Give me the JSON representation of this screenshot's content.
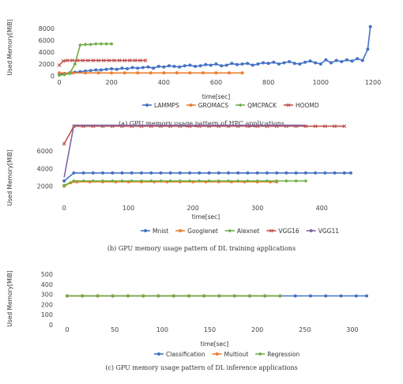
{
  "chart_data": [
    {
      "type": "line",
      "caption": "(a) GPU memory usage pattern of HPC applications",
      "xlabel": "time[sec]",
      "ylabel": "Used Memory[MiB]",
      "xlim": [
        0,
        1200
      ],
      "ylim": [
        0,
        8000
      ],
      "xticks": [
        0,
        200,
        400,
        600,
        800,
        1000,
        1200
      ],
      "yticks": [
        0,
        2000,
        4000,
        6000,
        8000
      ],
      "legend": "bottom",
      "series": [
        {
          "name": "LAMMPS",
          "color": "#4472c4",
          "marker": "circle",
          "x": [
            0,
            20,
            40,
            60,
            80,
            100,
            120,
            140,
            160,
            180,
            200,
            220,
            240,
            260,
            280,
            300,
            320,
            340,
            360,
            380,
            400,
            420,
            440,
            460,
            480,
            500,
            520,
            540,
            560,
            580,
            600,
            620,
            640,
            660,
            680,
            700,
            720,
            740,
            760,
            780,
            800,
            820,
            840,
            860,
            880,
            900,
            920,
            940,
            960,
            980,
            1000,
            1020,
            1040,
            1060,
            1080,
            1100,
            1120,
            1140,
            1160,
            1180,
            1190
          ],
          "y": [
            300,
            400,
            500,
            600,
            700,
            800,
            900,
            1000,
            1000,
            1100,
            1200,
            1100,
            1300,
            1200,
            1400,
            1300,
            1400,
            1500,
            1300,
            1600,
            1500,
            1700,
            1600,
            1500,
            1700,
            1800,
            1600,
            1700,
            1900,
            1800,
            2000,
            1700,
            1800,
            2100,
            1900,
            2000,
            2100,
            1800,
            2000,
            2200,
            2100,
            2300,
            2000,
            2200,
            2400,
            2100,
            2000,
            2300,
            2500,
            2200,
            2000,
            2700,
            2200,
            2600,
            2400,
            2700,
            2500,
            2900,
            2600,
            4500,
            8300
          ]
        },
        {
          "name": "GROMACS",
          "color": "#ed7d31",
          "marker": "circle",
          "x": [
            0,
            50,
            100,
            150,
            200,
            250,
            300,
            350,
            400,
            450,
            500,
            550,
            600,
            650,
            700
          ],
          "y": [
            500,
            500,
            500,
            500,
            500,
            500,
            500,
            500,
            500,
            500,
            500,
            500,
            500,
            500,
            500
          ]
        },
        {
          "name": "QMCPACK",
          "color": "#70ad47",
          "marker": "diamond",
          "x": [
            0,
            20,
            40,
            60,
            80,
            100,
            120,
            140,
            160,
            180,
            200
          ],
          "y": [
            100,
            200,
            400,
            2000,
            5200,
            5300,
            5300,
            5400,
            5400,
            5400,
            5400
          ]
        },
        {
          "name": "HOOMD",
          "color": "#c0504d",
          "marker": "x",
          "x": [
            0,
            15,
            30,
            50,
            70,
            90,
            110,
            130,
            150,
            170,
            190,
            210,
            230,
            250,
            270,
            290,
            310,
            330
          ],
          "y": [
            1800,
            2500,
            2600,
            2600,
            2600,
            2600,
            2600,
            2600,
            2600,
            2600,
            2600,
            2600,
            2600,
            2600,
            2600,
            2600,
            2600,
            2600
          ]
        }
      ]
    },
    {
      "type": "line",
      "caption": "(b) GPU memory usage pattern of DL training applications",
      "xlabel": "time[sec]",
      "ylabel": "Used Memory[MiB]",
      "xlim": [
        -10,
        450
      ],
      "ylim": [
        0,
        6000
      ],
      "xticks": [
        0,
        100,
        200,
        300,
        400
      ],
      "yticks": [
        2000,
        4000,
        6000
      ],
      "legend": "bottom",
      "series": [
        {
          "name": "Mnist",
          "color": "#4472c4",
          "marker": "circle",
          "x": [
            0,
            15,
            30,
            45,
            60,
            75,
            90,
            105,
            120,
            135,
            150,
            165,
            180,
            195,
            210,
            225,
            240,
            255,
            270,
            285,
            300,
            315,
            330,
            345,
            360,
            375,
            390,
            405,
            420,
            435,
            445
          ],
          "y": [
            2600,
            3500,
            3500,
            3500,
            3500,
            3500,
            3500,
            3500,
            3500,
            3500,
            3500,
            3500,
            3500,
            3500,
            3500,
            3500,
            3500,
            3500,
            3500,
            3500,
            3500,
            3500,
            3500,
            3500,
            3500,
            3500,
            3500,
            3500,
            3500,
            3500,
            3500
          ]
        },
        {
          "name": "Googlenet",
          "color": "#ed7d31",
          "marker": "circle",
          "x": [
            0,
            10,
            20,
            40,
            60,
            80,
            100,
            120,
            140,
            160,
            180,
            200,
            220,
            240,
            260,
            280,
            300,
            320,
            330
          ],
          "y": [
            2000,
            2400,
            2500,
            2500,
            2500,
            2500,
            2500,
            2500,
            2500,
            2500,
            2500,
            2500,
            2500,
            2500,
            2500,
            2500,
            2500,
            2500,
            2500
          ]
        },
        {
          "name": "Alexnet",
          "color": "#70ad47",
          "marker": "diamond",
          "x": [
            0,
            15,
            30,
            45,
            60,
            75,
            90,
            105,
            120,
            135,
            150,
            165,
            180,
            195,
            210,
            225,
            240,
            255,
            270,
            285,
            300,
            315,
            330,
            345,
            360,
            375
          ],
          "y": [
            2100,
            2600,
            2600,
            2600,
            2600,
            2600,
            2600,
            2600,
            2600,
            2600,
            2600,
            2600,
            2600,
            2600,
            2600,
            2600,
            2600,
            2600,
            2600,
            2600,
            2600,
            2600,
            2600,
            2600,
            2600,
            2600
          ]
        },
        {
          "name": "VGG16",
          "color": "#c0504d",
          "marker": "x",
          "x": [
            0,
            15,
            30,
            45,
            60,
            75,
            90,
            105,
            120,
            135,
            150,
            165,
            180,
            195,
            210,
            225,
            240,
            255,
            270,
            285,
            300,
            315,
            330,
            345,
            360,
            375,
            390,
            405,
            420,
            435
          ],
          "y": [
            6800,
            8800,
            8800,
            8800,
            8800,
            8800,
            8800,
            8800,
            8800,
            8800,
            8800,
            8800,
            8800,
            8800,
            8800,
            8800,
            8800,
            8800,
            8800,
            8800,
            8800,
            8800,
            8800,
            8800,
            8800,
            8800,
            8800,
            8800,
            8800,
            8800
          ]
        },
        {
          "name": "VGG11",
          "color": "#8064a2",
          "marker": "none",
          "x": [
            0,
            15,
            30,
            60,
            90,
            120,
            150,
            180,
            210,
            240,
            270,
            300,
            330,
            360,
            375
          ],
          "y": [
            3000,
            8900,
            8900,
            8900,
            8900,
            8900,
            8900,
            8900,
            8900,
            8900,
            8900,
            8900,
            8900,
            8900,
            8900
          ]
        }
      ]
    },
    {
      "type": "line",
      "caption": "(c) GPU memory usage pattern of DL inference applications",
      "xlabel": "time[sec]",
      "ylabel": "Used Memory[MiB]",
      "xlim": [
        -10,
        320
      ],
      "ylim": [
        0,
        500
      ],
      "xticks": [
        0,
        50,
        100,
        150,
        200,
        250,
        300
      ],
      "yticks": [
        0,
        100,
        200,
        300,
        400,
        500
      ],
      "legend": "bottom",
      "series": [
        {
          "name": "Classification",
          "color": "#4472c4",
          "marker": "circle",
          "x": [
            0,
            16,
            32,
            48,
            64,
            80,
            96,
            112,
            128,
            144,
            160,
            176,
            192,
            208,
            224,
            240,
            256,
            272,
            288,
            304,
            315
          ],
          "y": [
            285,
            285,
            285,
            285,
            285,
            285,
            285,
            285,
            285,
            285,
            285,
            285,
            285,
            285,
            285,
            285,
            285,
            285,
            285,
            285,
            285
          ]
        },
        {
          "name": "Multiout",
          "color": "#ed7d31",
          "marker": "circle",
          "x": [
            0,
            16,
            32,
            48,
            64,
            80,
            96,
            112,
            128,
            144,
            160,
            176,
            192,
            208,
            224
          ],
          "y": [
            285,
            285,
            285,
            285,
            285,
            285,
            285,
            285,
            285,
            285,
            285,
            285,
            285,
            285,
            285
          ]
        },
        {
          "name": "Regression",
          "color": "#70ad47",
          "marker": "diamond",
          "x": [
            0,
            16,
            32,
            48,
            64,
            80,
            96,
            112,
            128,
            144,
            160,
            176,
            192,
            208,
            224
          ],
          "y": [
            285,
            285,
            285,
            285,
            285,
            285,
            285,
            285,
            285,
            285,
            285,
            285,
            285,
            285,
            285
          ]
        }
      ]
    }
  ]
}
